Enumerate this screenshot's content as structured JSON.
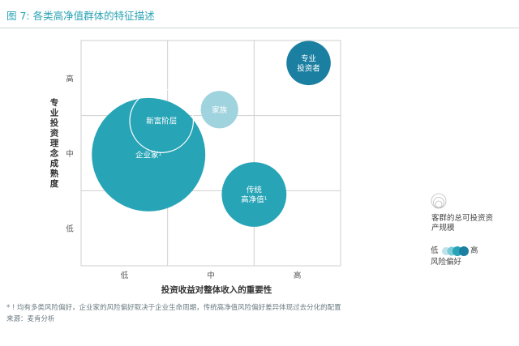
{
  "figure": {
    "title": "图 7: 各类高净值群体的特征描述",
    "footnote": "* ! 均有多类风险偏好，企业家的风险偏好取决于企业生命周期，传统高净值风险偏好差异体现过去分化的配置",
    "source": "来源：麦肯分析"
  },
  "chart_data": {
    "type": "bubble",
    "xlabel": "投资收益对整体收入的重要性",
    "ylabel": "专业投资理念成熟度",
    "x_ticks": [
      "低",
      "中",
      "高"
    ],
    "y_ticks": [
      "高",
      "中",
      "低"
    ],
    "grid": true,
    "x_range": [
      0,
      3
    ],
    "y_range": [
      0,
      3
    ],
    "points": [
      {
        "label": "企业家¹",
        "x": 0.78,
        "y": 1.48,
        "size": 1.0,
        "risk": 1.0,
        "outline": false
      },
      {
        "label": "新富阶层",
        "x": 0.93,
        "y": 1.93,
        "size": 0.56,
        "risk": 1.0,
        "outline": true
      },
      {
        "label": "家族",
        "x": 1.6,
        "y": 2.08,
        "size": 0.33,
        "risk": 0.25,
        "outline": false
      },
      {
        "label": "传统 高净值¹",
        "x": 2.0,
        "y": 0.95,
        "size": 0.57,
        "risk": 1.0,
        "outline": false
      },
      {
        "label": "专业 投资者",
        "x": 2.63,
        "y": 2.7,
        "size": 0.39,
        "risk": 1.4,
        "outline": false
      }
    ]
  },
  "legend": {
    "size_label": "客群的总可投资资产规模",
    "risk_low": "低",
    "risk_high": "高",
    "risk_label": "风险偏好"
  },
  "colors": {
    "risk_low": "#9fd3de",
    "risk_mid": "#27a4b6",
    "risk_high": "#1a7fa1",
    "grid": "#cfcfcf",
    "title": "#2aa3b4"
  }
}
